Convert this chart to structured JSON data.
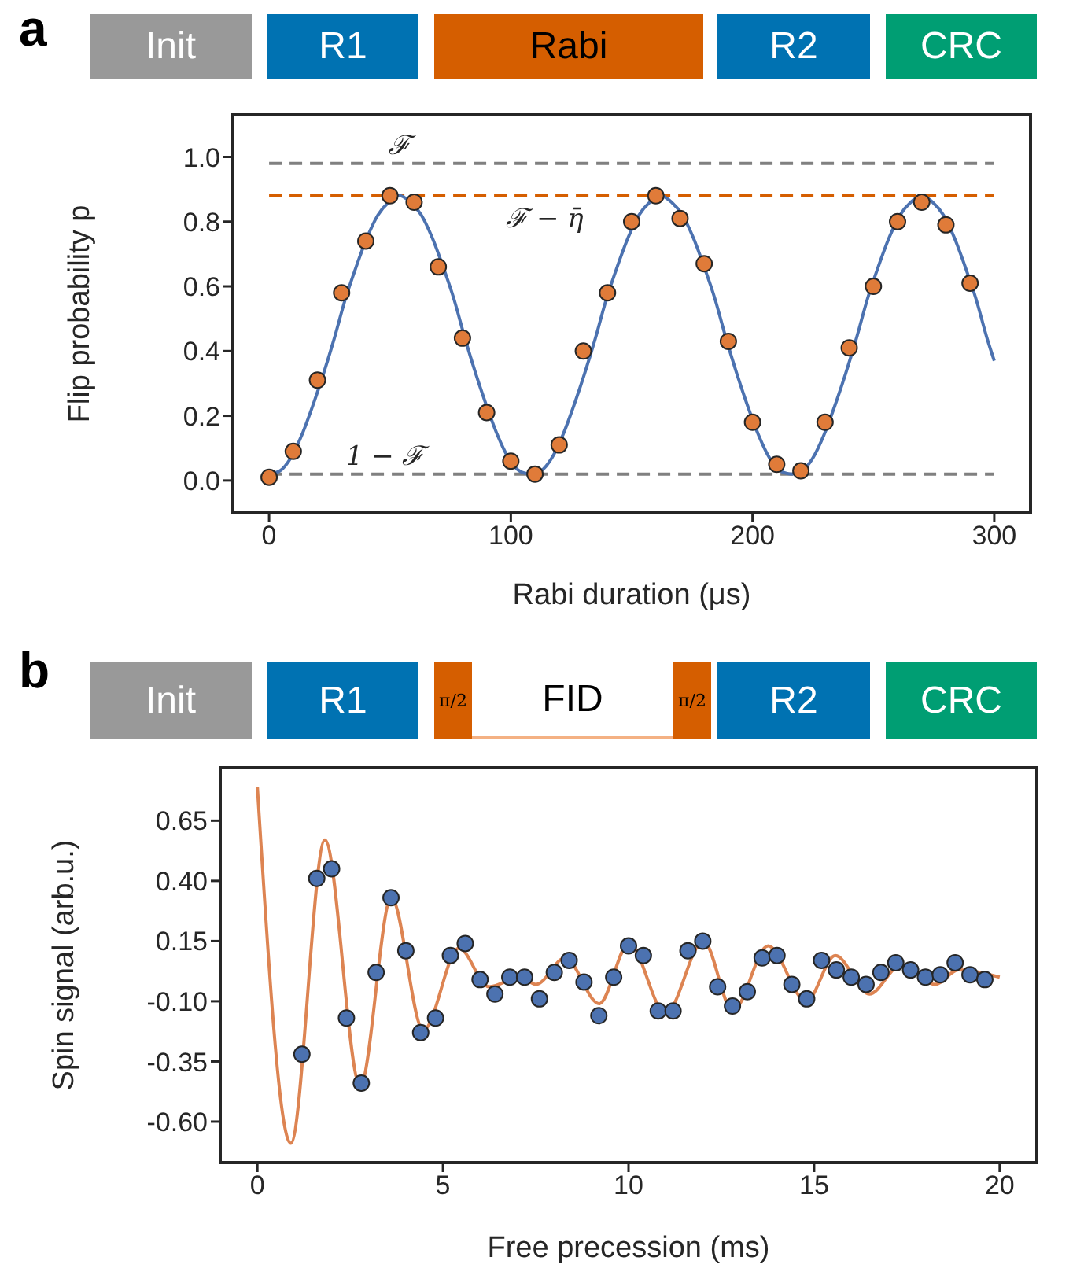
{
  "chart_data": [
    {
      "type": "scatter",
      "annotations": [
        "a",
        "Init",
        "R1",
        "Rabi",
        "R2",
        "CRC"
      ],
      "xlabel": "Rabi duration (μs)",
      "ylabel": "Flip probability p",
      "xlim": [
        -15,
        315
      ],
      "ylim": [
        -0.1,
        1.13
      ],
      "xticks": [
        0,
        100,
        200,
        300
      ],
      "yticks": [
        {
          "value": 0,
          "label": "0.0"
        },
        {
          "value": 0.2,
          "label": "0.2"
        },
        {
          "value": 0.4,
          "label": "0.4"
        },
        {
          "value": 0.6,
          "label": "0.6"
        },
        {
          "value": 0.8,
          "label": "0.8"
        },
        {
          "value": 1,
          "label": "1.0"
        }
      ],
      "ref_lines": [
        {
          "axis": "y",
          "value": 0.98,
          "label": "ℱ",
          "color": "#808080",
          "line_style": "dashed"
        },
        {
          "axis": "y",
          "value": 0.88,
          "label": "ℱ − η̄",
          "color": "#d55e00",
          "line_style": "dashed"
        },
        {
          "axis": "y",
          "value": 0.02,
          "label": "1 − ℱ",
          "color": "#808080",
          "line_style": "dashed"
        }
      ],
      "series": [
        {
          "marker": "circle",
          "color": "#e07b39",
          "x": [
            0,
            10,
            20,
            30,
            40,
            50,
            60,
            70,
            80,
            90,
            100,
            110,
            120,
            130,
            140,
            150,
            160,
            170,
            180,
            190,
            200,
            210,
            220,
            230,
            240,
            250,
            260,
            270,
            280,
            290
          ],
          "values": [
            0.01,
            0.09,
            0.31,
            0.58,
            0.74,
            0.88,
            0.86,
            0.66,
            0.44,
            0.21,
            0.06,
            0.02,
            0.11,
            0.4,
            0.58,
            0.8,
            0.88,
            0.81,
            0.67,
            0.43,
            0.18,
            0.05,
            0.03,
            0.18,
            0.41,
            0.6,
            0.8,
            0.86,
            0.79,
            0.61
          ]
        },
        {
          "type": "line",
          "marker": "none",
          "color": "#4c72b0",
          "x": [
            0,
            4.5,
            9,
            13.5,
            18,
            22.5,
            27,
            31.5,
            36,
            40.5,
            45,
            49.5,
            54,
            58.5,
            63,
            67.5,
            72,
            76.5,
            81,
            85.5,
            90,
            94.5,
            99,
            103.5,
            108,
            112.5,
            117,
            121.5,
            126,
            130.5,
            135,
            139.5,
            144,
            148.5,
            153,
            157.5,
            162,
            166.5,
            171,
            175.5,
            180,
            184.5,
            189,
            193.5,
            198,
            202.5,
            207,
            211.5,
            216,
            220.5,
            225,
            229.5,
            234,
            238.5,
            243,
            247.5,
            252,
            256.5,
            261,
            265.5,
            270,
            274.5,
            279,
            283.5,
            288,
            292.5,
            297,
            300
          ],
          "values": [
            0.02,
            0.03,
            0.07,
            0.14,
            0.23,
            0.33,
            0.44,
            0.56,
            0.66,
            0.75,
            0.82,
            0.86,
            0.88,
            0.86,
            0.82,
            0.75,
            0.66,
            0.56,
            0.44,
            0.33,
            0.23,
            0.14,
            0.07,
            0.03,
            0.02,
            0.03,
            0.07,
            0.14,
            0.23,
            0.33,
            0.44,
            0.56,
            0.66,
            0.75,
            0.82,
            0.86,
            0.88,
            0.86,
            0.82,
            0.75,
            0.66,
            0.56,
            0.44,
            0.33,
            0.23,
            0.14,
            0.07,
            0.03,
            0.02,
            0.03,
            0.07,
            0.14,
            0.23,
            0.33,
            0.44,
            0.56,
            0.66,
            0.75,
            0.82,
            0.86,
            0.88,
            0.86,
            0.82,
            0.75,
            0.66,
            0.56,
            0.44,
            0.37
          ]
        }
      ]
    },
    {
      "type": "scatter",
      "annotations": [
        "b",
        "Init",
        "R1",
        "π/2",
        "FID",
        "π/2",
        "R2",
        "CRC"
      ],
      "xlabel": "Free precession (ms)",
      "ylabel": "Spin signal (arb.u.)",
      "xlim": [
        -1,
        21
      ],
      "ylim": [
        -0.77,
        0.87
      ],
      "xticks": [
        0,
        5,
        10,
        15,
        20
      ],
      "yticks": [
        {
          "value": -0.6,
          "label": "-0.60"
        },
        {
          "value": -0.35,
          "label": "-0.35"
        },
        {
          "value": -0.1,
          "label": "-0.10"
        },
        0.15,
        {
          "value": 0.4,
          "label": "0.40"
        },
        0.65
      ],
      "series": [
        {
          "marker": "circle",
          "color": "#4c72b0",
          "x": [
            1.2,
            1.6,
            2.0,
            2.4,
            2.8,
            3.2,
            3.6,
            4.0,
            4.4,
            4.8,
            5.2,
            5.6,
            6.0,
            6.4,
            6.8,
            7.2,
            7.6,
            8.0,
            8.4,
            8.8,
            9.2,
            9.6,
            10.0,
            10.4,
            10.8,
            11.2,
            11.6,
            12.0,
            12.4,
            12.8,
            13.2,
            13.6,
            14.0,
            14.4,
            14.8,
            15.2,
            15.6,
            16.0,
            16.4,
            16.8,
            17.2,
            17.6,
            18.0,
            18.4,
            18.8,
            19.2,
            19.6
          ],
          "values": [
            -0.32,
            0.41,
            0.45,
            -0.17,
            -0.44,
            0.02,
            0.33,
            0.11,
            -0.23,
            -0.17,
            0.09,
            0.14,
            -0.01,
            -0.07,
            0.0,
            0.0,
            -0.09,
            0.02,
            0.07,
            -0.02,
            -0.16,
            0.0,
            0.13,
            0.09,
            -0.14,
            -0.14,
            0.11,
            0.15,
            -0.04,
            -0.12,
            -0.06,
            0.08,
            0.09,
            -0.03,
            -0.09,
            0.07,
            0.03,
            0.0,
            -0.03,
            0.02,
            0.06,
            0.03,
            0.0,
            0.01,
            0.06,
            0.01,
            -0.01
          ]
        },
        {
          "type": "line",
          "marker": "none",
          "color": "#dd8452",
          "x": [
            0,
            0.9,
            1.82,
            2.77,
            3.61,
            4.47,
            5.43,
            6.24,
            7.08,
            7.51,
            8.29,
            9.21,
            10.01,
            11.0,
            12.02,
            12.81,
            13.76,
            14.79,
            15.57,
            16.49,
            17.34,
            18.26,
            18.89,
            20
          ],
          "values": [
            0.79,
            -0.69,
            0.57,
            -0.45,
            0.33,
            -0.22,
            0.12,
            -0.04,
            0.0,
            -0.03,
            0.08,
            -0.11,
            0.14,
            -0.15,
            0.15,
            -0.14,
            0.13,
            -0.1,
            0.09,
            -0.07,
            0.05,
            -0.03,
            0.03,
            0.0
          ]
        }
      ]
    }
  ]
}
